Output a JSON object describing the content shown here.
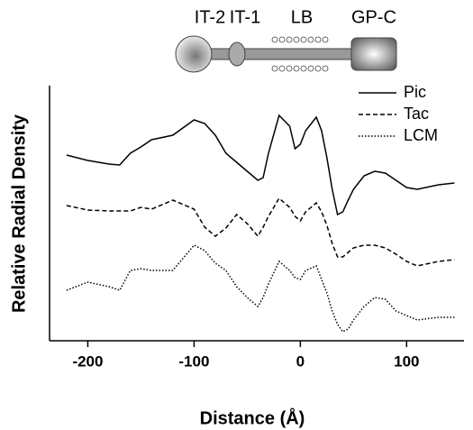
{
  "diagram": {
    "labels": [
      "IT-2",
      "IT-1",
      "LB",
      "GP-C"
    ]
  },
  "chart_data": {
    "type": "line",
    "x_label": "Distance (Å)",
    "y_label": "Relative Radial Density",
    "x": [
      -220,
      -200,
      -180,
      -170,
      -160,
      -150,
      -140,
      -120,
      -100,
      -90,
      -80,
      -70,
      -60,
      -50,
      -40,
      -35,
      -30,
      -20,
      -10,
      -5,
      0,
      5,
      15,
      20,
      25,
      30,
      35,
      40,
      45,
      50,
      60,
      70,
      80,
      90,
      100,
      110,
      130,
      145
    ],
    "series": [
      {
        "name": "Pic",
        "color": "#000000",
        "dash": "solid",
        "values": [
          206,
          200,
          196,
          195,
          208,
          215,
          223,
          228,
          245,
          241,
          228,
          208,
          198,
          188,
          178,
          181,
          208,
          250,
          238,
          213,
          218,
          233,
          248,
          233,
          203,
          168,
          140,
          143,
          156,
          168,
          183,
          188,
          186,
          178,
          170,
          168,
          173,
          175
        ]
      },
      {
        "name": "Tac",
        "color": "#000000",
        "dash": "dashed",
        "values": [
          150,
          145,
          144,
          144,
          144,
          148,
          146,
          156,
          146,
          126,
          116,
          125,
          140,
          130,
          116,
          126,
          138,
          158,
          148,
          138,
          133,
          143,
          153,
          143,
          128,
          108,
          93,
          93,
          98,
          103,
          106,
          106,
          103,
          96,
          88,
          83,
          88,
          90
        ]
      },
      {
        "name": "LCM",
        "color": "#000000",
        "dash": "dotted",
        "values": [
          56,
          65,
          60,
          56,
          78,
          80,
          78,
          78,
          106,
          100,
          86,
          78,
          60,
          48,
          38,
          48,
          63,
          88,
          78,
          70,
          68,
          78,
          83,
          68,
          53,
          33,
          18,
          10,
          13,
          23,
          38,
          48,
          46,
          33,
          28,
          23,
          26,
          26
        ]
      }
    ],
    "xlim": [
      -236,
      154
    ],
    "ylim": [
      0,
      283
    ],
    "xticks": [
      -200,
      -100,
      0,
      100
    ],
    "grid": false
  }
}
